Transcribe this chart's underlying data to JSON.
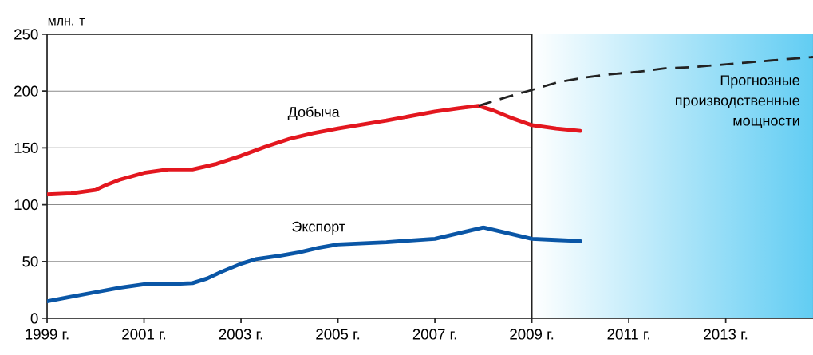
{
  "chart_data": {
    "type": "line",
    "ylabel": "млн. т",
    "xlim": [
      1999,
      2014.8
    ],
    "ylim": [
      0,
      250
    ],
    "xticks": [
      {
        "value": 1999,
        "label": "1999 г."
      },
      {
        "value": 2001,
        "label": "2001 г."
      },
      {
        "value": 2003,
        "label": "2003 г."
      },
      {
        "value": 2005,
        "label": "2005 г."
      },
      {
        "value": 2007,
        "label": "2007 г."
      },
      {
        "value": 2009,
        "label": "2009 г."
      },
      {
        "value": 2011,
        "label": "2011 г."
      },
      {
        "value": 2013,
        "label": "2013 г."
      }
    ],
    "yticks": [
      0,
      50,
      100,
      150,
      200,
      250
    ],
    "grid": "y",
    "series": [
      {
        "name": "Добыча",
        "color": "#e3171f",
        "x": [
          1999,
          1999.5,
          2000,
          2000.2,
          2000.5,
          2001,
          2001.5,
          2002,
          2002.5,
          2003,
          2003.5,
          2004,
          2004.5,
          2005,
          2006,
          2007,
          2007.5,
          2007.9,
          2008.2,
          2008.6,
          2009,
          2009.5,
          2010
        ],
        "values": [
          109,
          110,
          113,
          117,
          122,
          128,
          131,
          131,
          136,
          143,
          151,
          158,
          163,
          167,
          174,
          182,
          185,
          187,
          183,
          176,
          170,
          167,
          165
        ]
      },
      {
        "name": "Экспорт",
        "color": "#0a56a6",
        "x": [
          1999,
          1999.5,
          2000,
          2000.5,
          2001,
          2001.5,
          2002,
          2002.3,
          2002.6,
          2003,
          2003.3,
          2003.8,
          2004.2,
          2004.6,
          2005,
          2006,
          2007,
          2007.5,
          2008,
          2008.5,
          2009,
          2009.5,
          2010
        ],
        "values": [
          15,
          19,
          23,
          27,
          30,
          30,
          31,
          35,
          41,
          48,
          52,
          55,
          58,
          62,
          65,
          67,
          70,
          75,
          80,
          75,
          70,
          69,
          68
        ]
      },
      {
        "name": "Прогнозные производственные мощности",
        "color": "#222222",
        "line_style": "dashed",
        "x": [
          2007.9,
          2008.5,
          2009,
          2009.55,
          2010.1,
          2010.66,
          2011.2,
          2011.75,
          2012.3,
          2012.85,
          2013.4,
          2013.95,
          2014.8
        ],
        "values": [
          187,
          195,
          201,
          208,
          212,
          215,
          217,
          220,
          221,
          223,
          225,
          227,
          230
        ]
      }
    ],
    "ref_lines": [
      {
        "axis": "x",
        "value": 2009,
        "color": "#222222"
      }
    ],
    "bands": [
      {
        "axis": "x",
        "from": 2009,
        "to": 2014.8,
        "color": "#62cdf3"
      }
    ]
  }
}
